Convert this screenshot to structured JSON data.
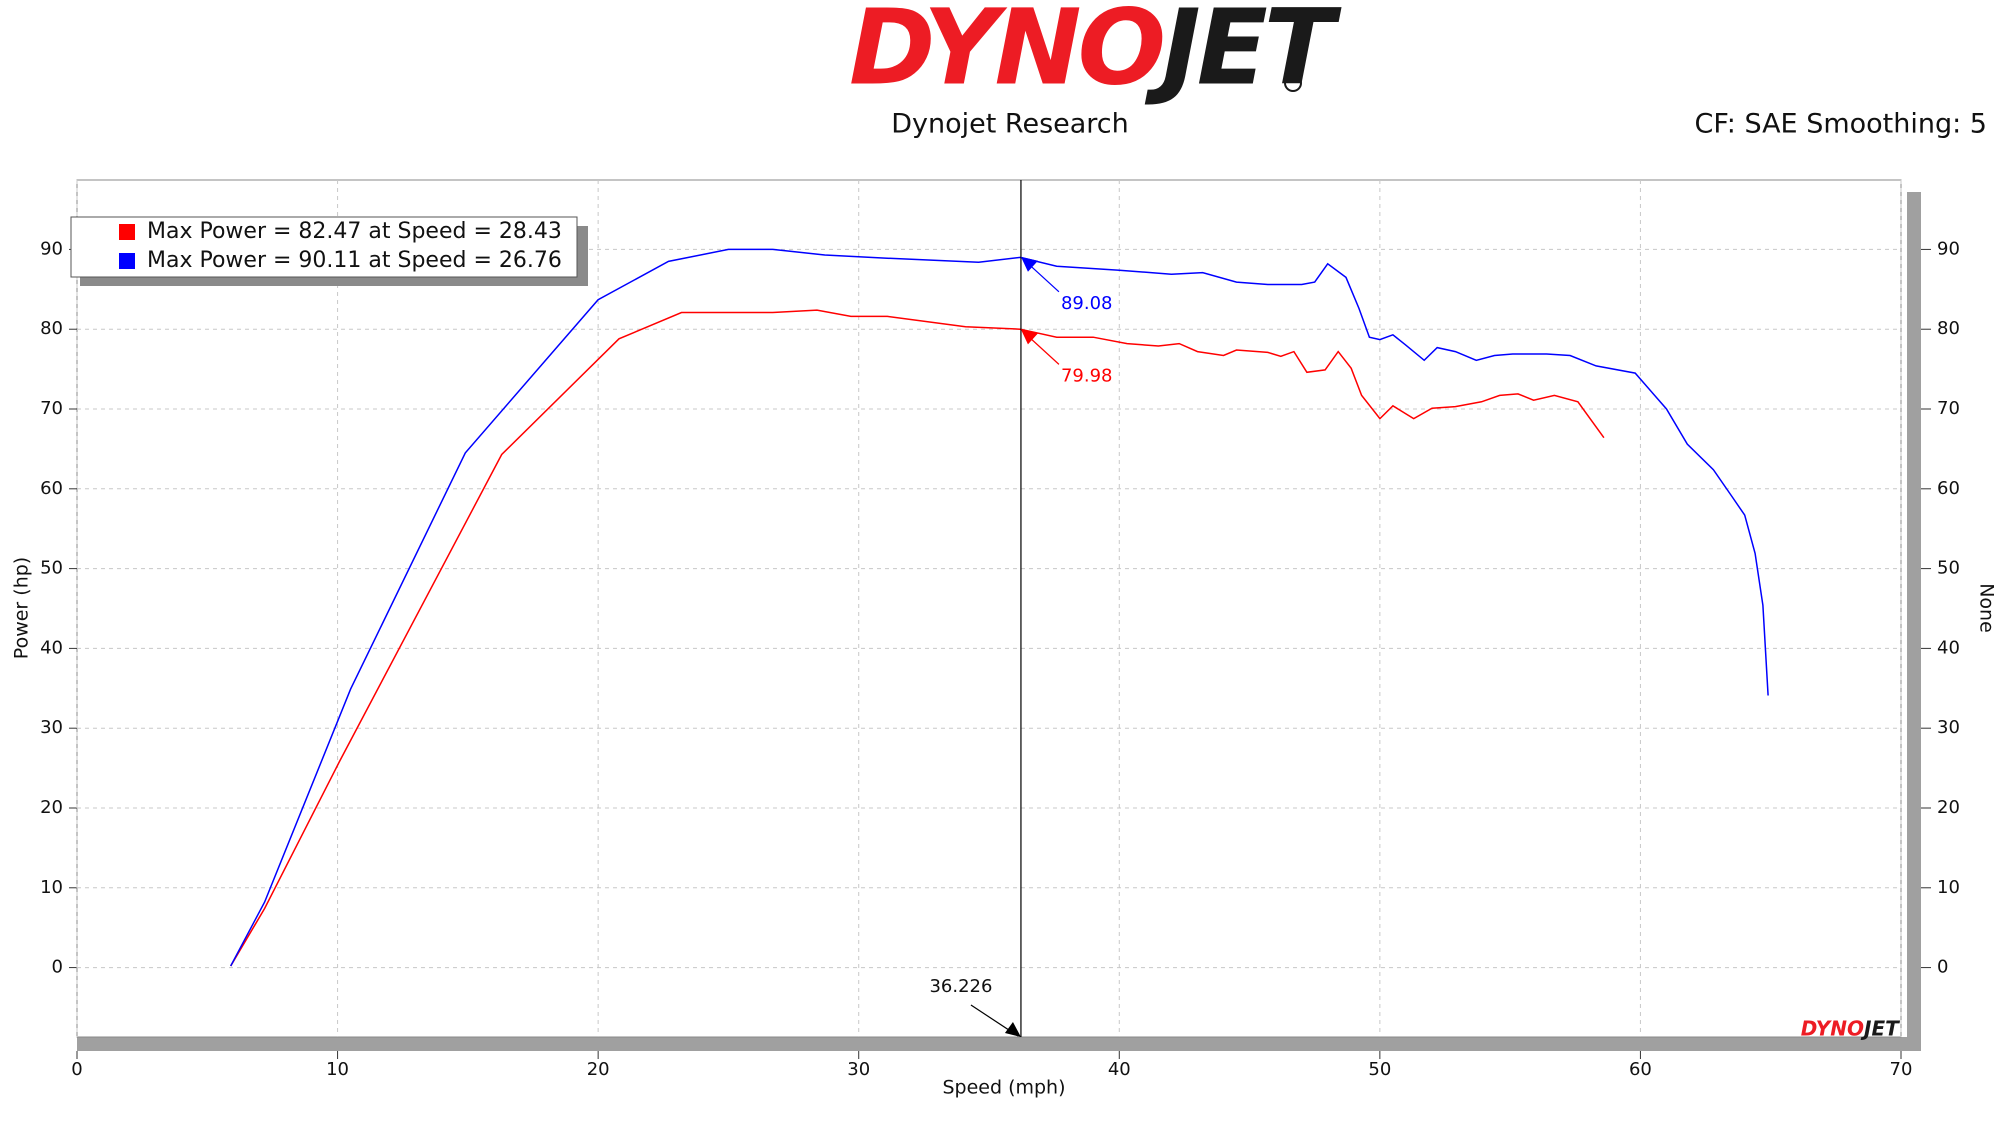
{
  "chart_data": {
    "type": "line",
    "logo_parts": [
      "DYNO",
      "JET"
    ],
    "title": "Dynojet Research",
    "subtitle": "CF: SAE Smoothing: 5",
    "x_label": "Speed (mph)",
    "y_label": "Power (hp)",
    "y2_label": "None",
    "xlim": [
      0,
      70
    ],
    "xticks": [
      0,
      10,
      20,
      30,
      40,
      50,
      60,
      70
    ],
    "ylim": [
      -8.7,
      98.7
    ],
    "yticks": [
      0,
      10,
      20,
      30,
      40,
      50,
      60,
      70,
      80,
      90
    ],
    "y2lim": [
      -8.7,
      98.7
    ],
    "y2ticks": [
      0,
      10,
      20,
      30,
      40,
      50,
      60,
      70,
      80,
      90
    ],
    "grid": true,
    "legend": "upper left",
    "cursor_x": 36.226,
    "series": [
      {
        "name": "Max Power = 82.47 at Speed = 28.43",
        "color": "#ff0000",
        "x": [
          5.9,
          7.2,
          10.1,
          16.3,
          20.8,
          23.2,
          26.7,
          28.4,
          29.7,
          31.1,
          34.1,
          36.2,
          37.6,
          39.0,
          40.3,
          41.5,
          42.3,
          43.0,
          44.0,
          44.5,
          45.7,
          46.2,
          46.7,
          47.2,
          47.9,
          48.4,
          48.9,
          49.3,
          50.0,
          50.5,
          51.3,
          52.0,
          52.9,
          53.9,
          54.6,
          55.3,
          55.9,
          56.7,
          57.6,
          58.6
        ],
        "values": [
          0.2,
          7.4,
          26,
          64.3,
          78.8,
          82.1,
          82.1,
          82.4,
          81.6,
          81.6,
          80.3,
          80.0,
          79.0,
          79.0,
          78.2,
          77.9,
          78.2,
          77.2,
          76.7,
          77.4,
          77.1,
          76.6,
          77.2,
          74.6,
          74.9,
          77.2,
          75.1,
          71.7,
          68.8,
          70.4,
          68.8,
          70.1,
          70.3,
          70.9,
          71.7,
          71.9,
          71.1,
          71.7,
          70.9,
          66.4
        ]
      },
      {
        "name": "Max Power = 90.11 at Speed = 26.76",
        "color": "#0000ff",
        "x": [
          5.9,
          7.2,
          10.5,
          14.9,
          20.0,
          22.7,
          25.0,
          26.7,
          28.7,
          31.1,
          34.6,
          36.2,
          37.6,
          40.0,
          42.0,
          43.2,
          44.5,
          45.7,
          47.0,
          47.5,
          48.0,
          48.7,
          49.2,
          49.6,
          50.0,
          50.5,
          51.0,
          51.7,
          52.2,
          52.9,
          53.7,
          54.4,
          55.1,
          56.4,
          57.3,
          58.3,
          59.8,
          61.0,
          61.8,
          62.8,
          63.5,
          64.0,
          64.4,
          64.7,
          64.9
        ],
        "values": [
          0.2,
          8.2,
          34.9,
          64.5,
          83.7,
          88.5,
          90,
          90,
          89.3,
          88.9,
          88.4,
          89.0,
          87.9,
          87.4,
          86.9,
          87.1,
          85.9,
          85.6,
          85.6,
          85.9,
          88.2,
          86.5,
          82.6,
          79.0,
          78.7,
          79.3,
          78.0,
          76.1,
          77.7,
          77.2,
          76.1,
          76.7,
          76.9,
          76.9,
          76.7,
          75.4,
          74.5,
          70,
          65.6,
          62.4,
          59.1,
          56.7,
          51.9,
          45.4,
          34.1
        ]
      }
    ],
    "annotations": [
      {
        "value": 89.08,
        "series": 1
      },
      {
        "value": 79.98,
        "series": 0
      }
    ]
  }
}
